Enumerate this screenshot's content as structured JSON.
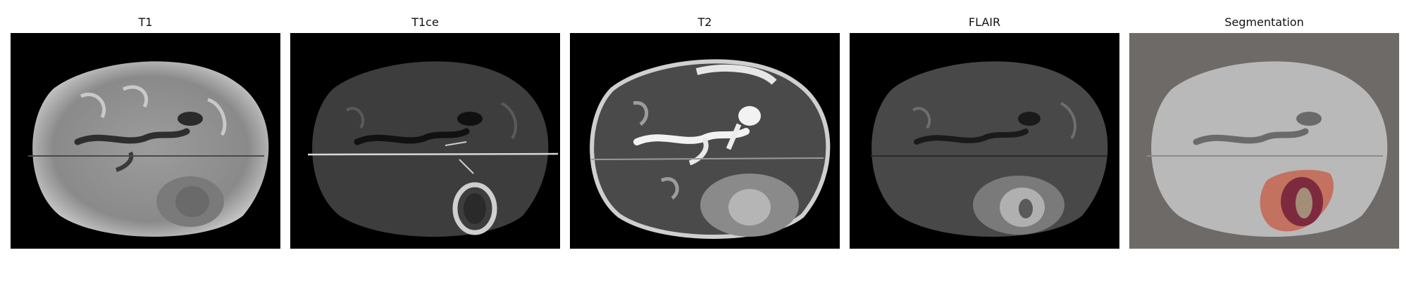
{
  "panels": [
    {
      "title": "T1"
    },
    {
      "title": "T1ce"
    },
    {
      "title": "T2"
    },
    {
      "title": "FLAIR"
    },
    {
      "title": "Segmentation"
    }
  ]
}
